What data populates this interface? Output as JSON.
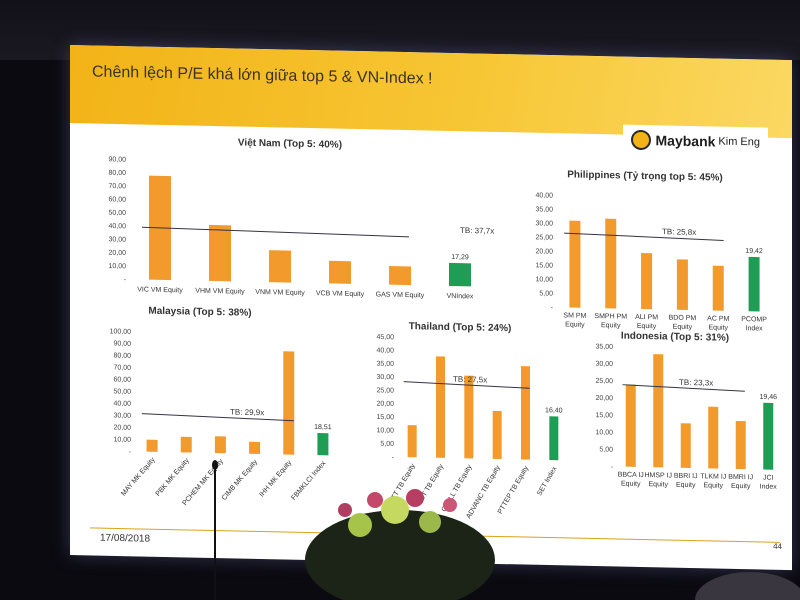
{
  "slide": {
    "title": "Chênh lệch P/E khá lớn giữa top 5 & VN-Index !",
    "logo": {
      "brand": "Maybank",
      "sub": "Kim Eng"
    },
    "date": "17/08/2018",
    "page": "44"
  },
  "colors": {
    "company_bar": "#f39a2c",
    "index_bar": "#1f9d55",
    "banner": "#f2b317"
  },
  "chart_data": [
    {
      "id": "vn",
      "type": "bar",
      "title": "Việt Nam (Top 5: 40%)",
      "categories": [
        "VIC VM Equity",
        "VHM VM Equity",
        "VNM VM Equity",
        "VCB VM Equity",
        "GAS VM Equity",
        "VNIndex"
      ],
      "values": [
        78,
        42,
        24,
        17,
        14,
        17.29
      ],
      "index_label": "17,29",
      "average": 37.7,
      "average_label": "TB: 37,7x",
      "ylim": [
        0,
        90
      ],
      "yticks": [
        "-",
        "10,00",
        "20,00",
        "30,00",
        "40,00",
        "50,00",
        "60,00",
        "70,00",
        "80,00",
        "90,00"
      ]
    },
    {
      "id": "ph",
      "type": "bar",
      "title": "Philippines (Tỷ trọng top 5: 45%)",
      "categories": [
        "SM PM Equity",
        "SMPH PM Equity",
        "ALI PM Equity",
        "BDO PM Equity",
        "AC PM Equity",
        "PCOMP Index"
      ],
      "values": [
        31,
        32,
        20,
        18,
        16,
        19.42
      ],
      "index_label": "19,42",
      "average": 25.8,
      "average_label": "TB: 25,8x",
      "ylim": [
        0,
        40
      ],
      "yticks": [
        "-",
        "5,00",
        "10,00",
        "15,00",
        "20,00",
        "25,00",
        "30,00",
        "35,00",
        "40,00"
      ]
    },
    {
      "id": "my",
      "type": "bar",
      "title": "Malaysia (Top 5: 38%)",
      "categories": [
        "MAY MK Equity",
        "PBK MK Equity",
        "PCHEM MK Equity",
        "CIMB MK Equity",
        "IHH MK Equity",
        "FBMKLCI Index"
      ],
      "values": [
        10,
        13,
        14,
        10,
        86,
        18.51
      ],
      "index_label": "18,51",
      "average": 29.9,
      "average_label": "TB: 29,9x",
      "ylim": [
        0,
        100
      ],
      "yticks": [
        "-",
        "10,00",
        "20,00",
        "30,00",
        "40,00",
        "50,00",
        "60,00",
        "70,00",
        "80,00",
        "90,00",
        "100,00"
      ]
    },
    {
      "id": "th",
      "type": "bar",
      "title": "Thailand (Top 5: 24%)",
      "categories": [
        "PTT TB Equity",
        "AOT TB Equity",
        "CPALL TB Equity",
        "ADVANC TB Equity",
        "PTTEP TB Equity",
        "SET Index"
      ],
      "values": [
        12,
        38,
        31,
        18,
        35,
        16.4
      ],
      "index_label": "16,40",
      "average": 27.5,
      "average_label": "TB: 27,5x",
      "ylim": [
        0,
        45
      ],
      "yticks": [
        "-",
        "5,00",
        "10,00",
        "15,00",
        "20,00",
        "25,00",
        "30,00",
        "35,00",
        "40,00",
        "45,00"
      ]
    },
    {
      "id": "id",
      "type": "bar",
      "title": "Indonesia (Top 5: 31%)",
      "categories": [
        "BBCA IJ Equity",
        "HMSP IJ Equity",
        "BBRI IJ Equity",
        "TLKM IJ Equity",
        "BMRI IJ Equity",
        "JCI Index"
      ],
      "values": [
        24,
        33,
        13,
        18,
        14,
        19.46
      ],
      "index_label": "19,46",
      "average": 23.3,
      "average_label": "TB: 23,3x",
      "ylim": [
        0,
        35
      ],
      "yticks": [
        "-",
        "5,00",
        "10,00",
        "15,00",
        "20,00",
        "25,00",
        "30,00",
        "35,00"
      ]
    }
  ]
}
